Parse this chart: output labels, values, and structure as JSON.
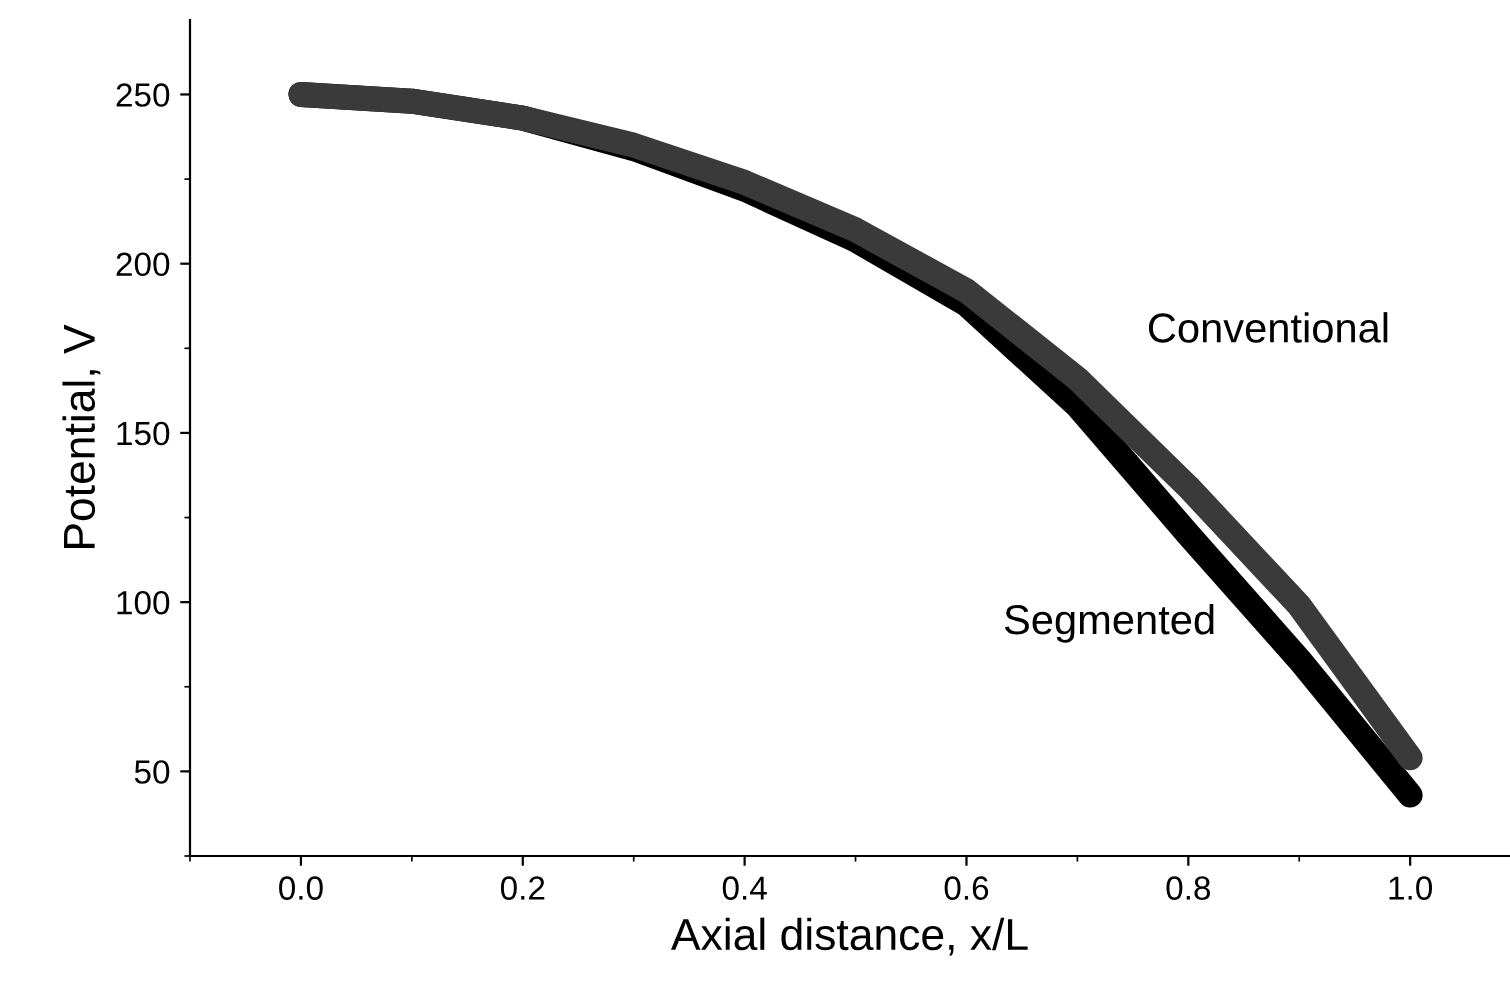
{
  "chart_data": {
    "type": "line",
    "xlabel": "Axial distance, x/L",
    "ylabel": "Potential, V",
    "x": [
      0.0,
      0.1,
      0.2,
      0.3,
      0.4,
      0.5,
      0.6,
      0.7,
      0.8,
      0.9,
      1.0
    ],
    "series": [
      {
        "name": "Segmented",
        "color": "#000000",
        "values": [
          250,
          248,
          243,
          234,
          222,
          207,
          188,
          158,
          120,
          83,
          43
        ]
      },
      {
        "name": "Conventional",
        "color": "#3a3a3a",
        "values": [
          250,
          248,
          243,
          235,
          224,
          210,
          192,
          166,
          134,
          99,
          54
        ]
      }
    ],
    "xlim": [
      -0.1,
      1.09
    ],
    "ylim": [
      25,
      272
    ],
    "xticks": [
      {
        "value": 0,
        "label": "0.0"
      },
      {
        "value": 0.2,
        "label": "0.2"
      },
      {
        "value": 0.4,
        "label": "0.4"
      },
      {
        "value": 0.6,
        "label": "0.6"
      },
      {
        "value": 0.8,
        "label": "0.8"
      },
      {
        "value": 1,
        "label": "1.0"
      }
    ],
    "yticks": [
      50,
      100,
      150,
      200,
      250
    ],
    "grid": false,
    "legend": false,
    "line_style": "solid"
  }
}
